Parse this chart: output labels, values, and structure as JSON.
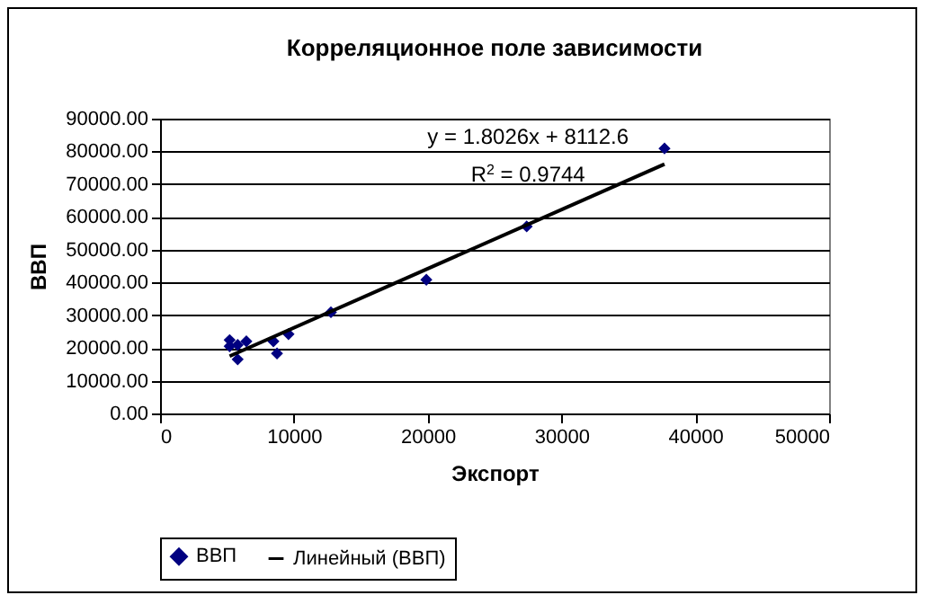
{
  "chart_data": {
    "type": "scatter",
    "title": "Корреляционное поле зависимости",
    "xlabel": "Экспорт",
    "ylabel": "ВВП",
    "x": [
      5200,
      5200,
      5800,
      5800,
      6450,
      8470,
      8740,
      9600,
      12770,
      19900,
      27400,
      37700
    ],
    "series": [
      {
        "name": "ВВП",
        "color": "#000080",
        "marker": "diamond",
        "values": [
          22400,
          20500,
          16500,
          20900,
          22000,
          22000,
          18300,
          24200,
          30900,
          40800,
          57100,
          80900
        ]
      },
      {
        "name": "Линейный (ВВП)",
        "type": "line",
        "color": "#000000",
        "marker": "none",
        "x": [
          5200,
          37700
        ],
        "values": [
          17500,
          76100
        ]
      }
    ],
    "xlim": [
      0,
      50000
    ],
    "xticks": [
      0,
      10000,
      20000,
      30000,
      40000,
      50000
    ],
    "ylim": [
      0,
      90000
    ],
    "yticks": [
      {
        "value": 0,
        "label": "0.00"
      },
      {
        "value": 10000,
        "label": "10000.00"
      },
      {
        "value": 20000,
        "label": "20000.00"
      },
      {
        "value": 30000,
        "label": "30000.00"
      },
      {
        "value": 40000,
        "label": "40000.00"
      },
      {
        "value": 50000,
        "label": "50000.00"
      },
      {
        "value": 60000,
        "label": "60000.00"
      },
      {
        "value": 70000,
        "label": "70000.00"
      },
      {
        "value": 80000,
        "label": "80000.00"
      },
      {
        "value": 90000,
        "label": "90000.00"
      }
    ],
    "annotations": [
      "y = 1.8026x + 8112.6",
      "R$^{2}$ = 0.9744"
    ],
    "grid": "y",
    "legend": "bottom"
  }
}
